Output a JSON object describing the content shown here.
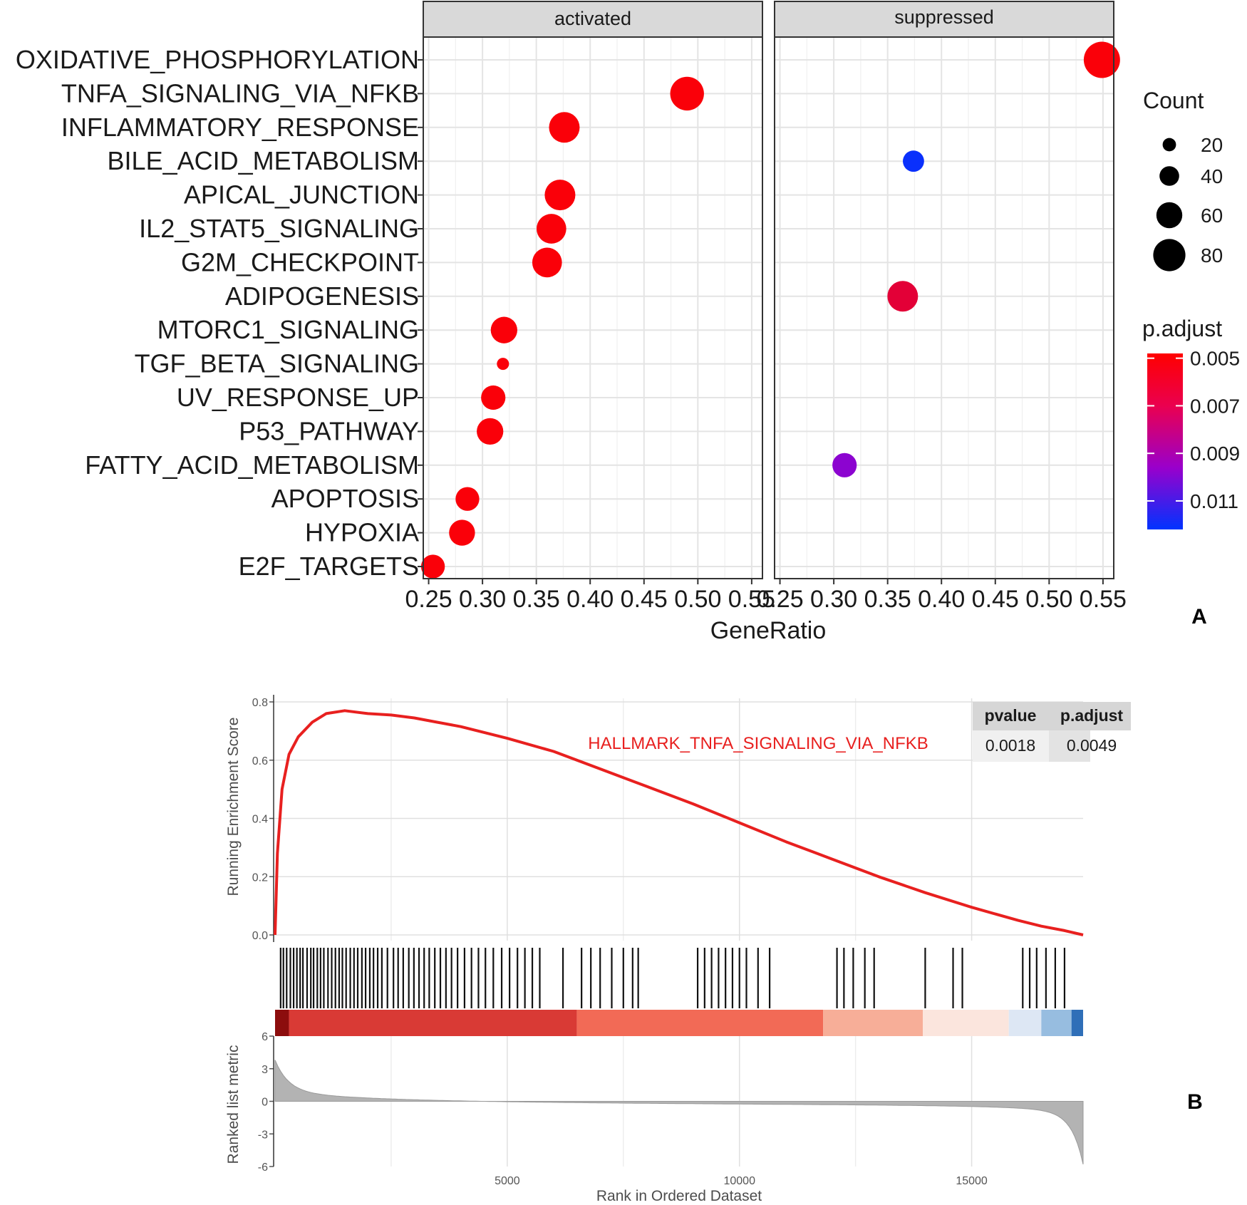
{
  "chart_data": [
    {
      "type": "scatter",
      "subtype": "dotplot",
      "panel_label": "A",
      "facets": [
        "activated",
        "suppressed"
      ],
      "categories": [
        "OXIDATIVE_PHOSPHORYLATION",
        "TNFA_SIGNALING_VIA_NFKB",
        "INFLAMMATORY_RESPONSE",
        "BILE_ACID_METABOLISM",
        "APICAL_JUNCTION",
        "IL2_STAT5_SIGNALING",
        "G2M_CHECKPOINT",
        "ADIPOGENESIS",
        "MTORC1_SIGNALING",
        "TGF_BETA_SIGNALING",
        "UV_RESPONSE_UP",
        "P53_PATHWAY",
        "FATTY_ACID_METABOLISM",
        "APOPTOSIS",
        "HYPOXIA",
        "E2F_TARGETS"
      ],
      "xlabel": "GeneRatio",
      "xlim": [
        0.245,
        0.56
      ],
      "xticks": [
        0.25,
        0.3,
        0.35,
        0.4,
        0.45,
        0.5,
        0.55
      ],
      "xtick_labels": [
        "0.25",
        "0.30",
        "0.35",
        "0.40",
        "0.45",
        "0.50",
        "0.55"
      ],
      "points": [
        {
          "facet": "activated",
          "category": "TNFA_SIGNALING_VIA_NFKB",
          "x": 0.49,
          "count": 85,
          "p_adjust": 0.005
        },
        {
          "facet": "activated",
          "category": "INFLAMMATORY_RESPONSE",
          "x": 0.376,
          "count": 75,
          "p_adjust": 0.005
        },
        {
          "facet": "activated",
          "category": "APICAL_JUNCTION",
          "x": 0.372,
          "count": 75,
          "p_adjust": 0.005
        },
        {
          "facet": "activated",
          "category": "IL2_STAT5_SIGNALING",
          "x": 0.364,
          "count": 72,
          "p_adjust": 0.005
        },
        {
          "facet": "activated",
          "category": "G2M_CHECKPOINT",
          "x": 0.36,
          "count": 72,
          "p_adjust": 0.005
        },
        {
          "facet": "activated",
          "category": "MTORC1_SIGNALING",
          "x": 0.32,
          "count": 62,
          "p_adjust": 0.005
        },
        {
          "facet": "activated",
          "category": "TGF_BETA_SIGNALING",
          "x": 0.319,
          "count": 16,
          "p_adjust": 0.005
        },
        {
          "facet": "activated",
          "category": "UV_RESPONSE_UP",
          "x": 0.31,
          "count": 55,
          "p_adjust": 0.005
        },
        {
          "facet": "activated",
          "category": "P53_PATHWAY",
          "x": 0.307,
          "count": 62,
          "p_adjust": 0.005
        },
        {
          "facet": "activated",
          "category": "APOPTOSIS",
          "x": 0.286,
          "count": 53,
          "p_adjust": 0.005
        },
        {
          "facet": "activated",
          "category": "HYPOXIA",
          "x": 0.281,
          "count": 60,
          "p_adjust": 0.005
        },
        {
          "facet": "activated",
          "category": "E2F_TARGETS",
          "x": 0.254,
          "count": 53,
          "p_adjust": 0.005
        },
        {
          "facet": "suppressed",
          "category": "OXIDATIVE_PHOSPHORYLATION",
          "x": 0.549,
          "count": 93,
          "p_adjust": 0.005
        },
        {
          "facet": "suppressed",
          "category": "BILE_ACID_METABOLISM",
          "x": 0.374,
          "count": 45,
          "p_adjust": 0.012
        },
        {
          "facet": "suppressed",
          "category": "ADIPOGENESIS",
          "x": 0.364,
          "count": 75,
          "p_adjust": 0.006
        },
        {
          "facet": "suppressed",
          "category": "FATTY_ACID_METABOLISM",
          "x": 0.31,
          "count": 55,
          "p_adjust": 0.0095
        }
      ],
      "size_legend": {
        "title": "Count",
        "values": [
          20,
          40,
          60,
          80
        ],
        "labels": [
          "20",
          "40",
          "60",
          "80"
        ]
      },
      "color_legend": {
        "title": "p.adjust",
        "ticks": [
          "0.005",
          "0.007",
          "0.009",
          "0.011"
        ],
        "tick_values": [
          0.005,
          0.007,
          0.009,
          0.011
        ],
        "range": [
          0.0048,
          0.0122
        ],
        "low_color": "#ff0000",
        "mid_color": "#9900cc",
        "high_color": "#0033ff"
      }
    },
    {
      "type": "line",
      "subtype": "gsea_plot",
      "panel_label": "B",
      "title": "HALLMARK_TNFA_SIGNALING_VIA_NFKB",
      "title_color": "#e8201f",
      "ylabel": "Running Enrichment Score",
      "ylim": [
        0,
        0.8
      ],
      "yticks": [
        "0.0",
        "0.2",
        "0.4",
        "0.6",
        "0.8"
      ],
      "ytick_values": [
        0,
        0.2,
        0.4,
        0.6,
        0.8
      ],
      "x_max": 17400,
      "x": [
        0,
        50,
        150,
        300,
        500,
        800,
        1100,
        1500,
        2000,
        2500,
        3000,
        3500,
        4000,
        5000,
        6000,
        7000,
        8000,
        9000,
        10000,
        11000,
        12000,
        13000,
        14000,
        15000,
        16000,
        16500,
        17000,
        17400
      ],
      "y": [
        0.0,
        0.28,
        0.5,
        0.62,
        0.68,
        0.73,
        0.76,
        0.77,
        0.76,
        0.755,
        0.745,
        0.73,
        0.715,
        0.675,
        0.63,
        0.57,
        0.51,
        0.45,
        0.385,
        0.32,
        0.26,
        0.2,
        0.145,
        0.095,
        0.05,
        0.03,
        0.015,
        0.0
      ],
      "line_color": "#e8201f",
      "hits": [
        120,
        180,
        250,
        330,
        400,
        470,
        540,
        600,
        690,
        770,
        830,
        910,
        980,
        1050,
        1140,
        1220,
        1300,
        1380,
        1450,
        1530,
        1620,
        1700,
        1780,
        1870,
        1950,
        2040,
        2120,
        2210,
        2300,
        2420,
        2550,
        2650,
        2760,
        2880,
        2990,
        3100,
        3210,
        3320,
        3440,
        3560,
        3680,
        3800,
        3930,
        4080,
        4230,
        4380,
        4530,
        4700,
        4880,
        5050,
        5220,
        5380,
        5540,
        5700,
        6200,
        6600,
        6800,
        7000,
        7250,
        7500,
        7700,
        7820,
        9100,
        9250,
        9400,
        9550,
        9700,
        9850,
        10000,
        10150,
        10400,
        10650,
        12100,
        12250,
        12450,
        12700,
        12900,
        14000,
        14600,
        14800,
        16100,
        16250,
        16400,
        16600,
        16800,
        17000
      ],
      "rank_ylabel": "Ranked list metric",
      "rank_yticks": [
        "-6",
        "-3",
        "0",
        "3",
        "6"
      ],
      "rank_ytick_values": [
        -6,
        -3,
        0,
        3,
        6
      ],
      "rank_xlabel": "Rank in Ordered Dataset",
      "rank_xticks": [
        "5000",
        "10000",
        "15000"
      ],
      "rank_xtick_values": [
        5000,
        10000,
        15000
      ],
      "color_bands": [
        {
          "from": 0,
          "to": 300,
          "color": "#8c0d0d"
        },
        {
          "from": 300,
          "to": 6500,
          "color": "#d93a35"
        },
        {
          "from": 6500,
          "to": 11800,
          "color": "#f26a56"
        },
        {
          "from": 11800,
          "to": 13950,
          "color": "#f7ae98"
        },
        {
          "from": 13950,
          "to": 15800,
          "color": "#fbe5dd"
        },
        {
          "from": 15800,
          "to": 16500,
          "color": "#dde7f4"
        },
        {
          "from": 16500,
          "to": 17150,
          "color": "#97bde0"
        },
        {
          "from": 17150,
          "to": 17400,
          "color": "#2f6fb8"
        }
      ],
      "table": {
        "headers": [
          "pvalue",
          "p.adjust"
        ],
        "values": [
          "0.0018",
          "0.0049"
        ]
      }
    }
  ],
  "labels": {
    "panel_a": "A",
    "panel_b": "B"
  }
}
